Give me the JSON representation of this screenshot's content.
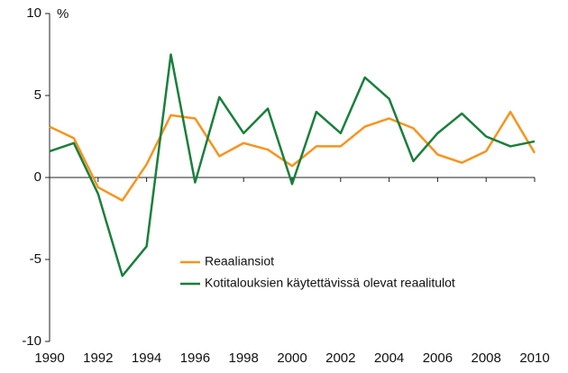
{
  "chart_data": {
    "type": "line",
    "y_unit": "%",
    "x": [
      1990,
      1991,
      1992,
      1993,
      1994,
      1995,
      1996,
      1997,
      1998,
      1999,
      2000,
      2001,
      2002,
      2003,
      2004,
      2005,
      2006,
      2007,
      2008,
      2009,
      2010
    ],
    "series": [
      {
        "name": "Reaaliansiot",
        "color": "#f7941d",
        "values": [
          3.1,
          2.4,
          -0.6,
          -1.4,
          0.8,
          3.8,
          3.6,
          1.3,
          2.1,
          1.7,
          0.7,
          1.9,
          1.9,
          3.1,
          3.6,
          3.0,
          1.4,
          0.9,
          1.6,
          4.0,
          1.5
        ]
      },
      {
        "name": "Kotitalouksien käytettävissä olevat reaalitulot",
        "color": "#1a7f3c",
        "values": [
          1.6,
          2.1,
          -1.0,
          -6.0,
          -4.2,
          7.5,
          -0.3,
          4.9,
          2.7,
          4.2,
          -0.4,
          4.0,
          2.7,
          6.1,
          4.8,
          1.0,
          2.7,
          3.9,
          2.5,
          1.9,
          2.2
        ]
      }
    ],
    "xlim": [
      1990,
      2010
    ],
    "xticks": [
      1990,
      1992,
      1994,
      1996,
      1998,
      2000,
      2002,
      2004,
      2006,
      2008,
      2010
    ],
    "ylim": [
      -10,
      10
    ],
    "yticks": [
      -10,
      -5,
      0,
      5,
      10
    ],
    "legend": "center"
  }
}
